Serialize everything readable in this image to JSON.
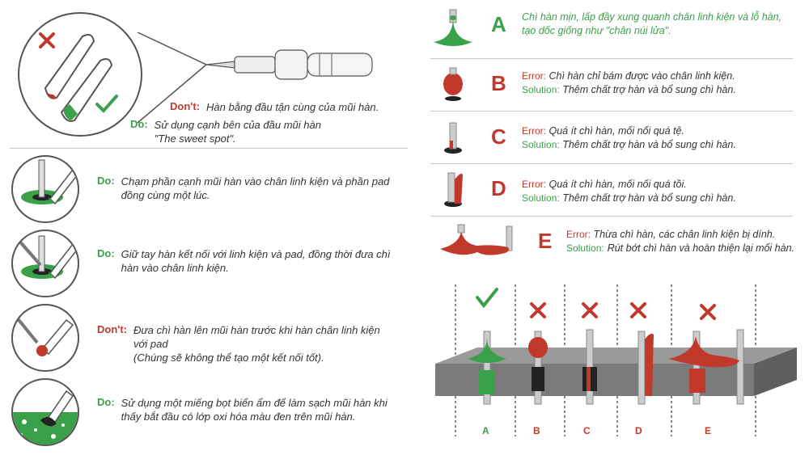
{
  "left": {
    "top_dont_label": "Don't:",
    "top_dont_text": "Hàn bằng đầu tận cùng của mũi hàn.",
    "top_do_label": "Do:",
    "top_do_text_1": "Sử dụng cạnh bên của đầu mũi hàn",
    "top_do_text_2": "\"The sweet spot\".",
    "steps": [
      {
        "label": "Do:",
        "kind": "do",
        "text": "Chạm phần cạnh mũi hàn vào chân linh kiện và phần pad đồng cùng một lúc."
      },
      {
        "label": "Do:",
        "kind": "do",
        "text": "Giữ tay hàn kết nối với linh kiện và pad, đồng thời đưa chì hàn vào chân linh kiện."
      },
      {
        "label": "Don't:",
        "kind": "dont",
        "text": "Đưa chì hàn lên mũi hàn trước khi hàn chân linh kiện với pad",
        "text2": "(Chúng sẽ không thể tạo một kết nối tốt)."
      },
      {
        "label": "Do:",
        "kind": "do",
        "text": "Sử dụng một miếng bọt biển ẩm để làm sạch mũi hàn khi thấy bắt đầu có lớp oxi hóa màu đen trên mũi hàn."
      }
    ]
  },
  "right": {
    "A": {
      "letter": "A",
      "text": "Chì hàn mịn, lấp đầy xung quanh chân linh kiện và lỗ hàn, tạo dốc giống như \"chân núi lửa\"."
    },
    "B": {
      "letter": "B",
      "err_label": "Error:",
      "err": "Chì hàn chỉ bám được vào chân linh kiện.",
      "sol_label": "Solution:",
      "sol": "Thêm chất trợ hàn và bổ sung chì hàn."
    },
    "C": {
      "letter": "C",
      "err_label": "Error:",
      "err": "Quá ít chì hàn, mối nối quá tệ.",
      "sol_label": "Solution:",
      "sol": "Thêm chất trợ hàn và bổ sung chì hàn."
    },
    "D": {
      "letter": "D",
      "err_label": "Error:",
      "err": "Quá ít chì hàn, mối nối quá tồi.",
      "sol_label": "Solution:",
      "sol": "Thêm chất trợ hàn và bổ sung chì hàn."
    },
    "E": {
      "letter": "E",
      "err_label": "Error:",
      "err": "Thừa chì hàn, các chân linh kiện bị dính.",
      "sol_label": "Solution:",
      "sol": "Rút bớt chì hàn và hoàn thiện lại mối hàn."
    }
  },
  "board_labels": [
    "A",
    "B",
    "C",
    "D",
    "E"
  ],
  "colors": {
    "green": "#3aa04a",
    "red": "#c0392b",
    "board": "#7a7a7a"
  }
}
